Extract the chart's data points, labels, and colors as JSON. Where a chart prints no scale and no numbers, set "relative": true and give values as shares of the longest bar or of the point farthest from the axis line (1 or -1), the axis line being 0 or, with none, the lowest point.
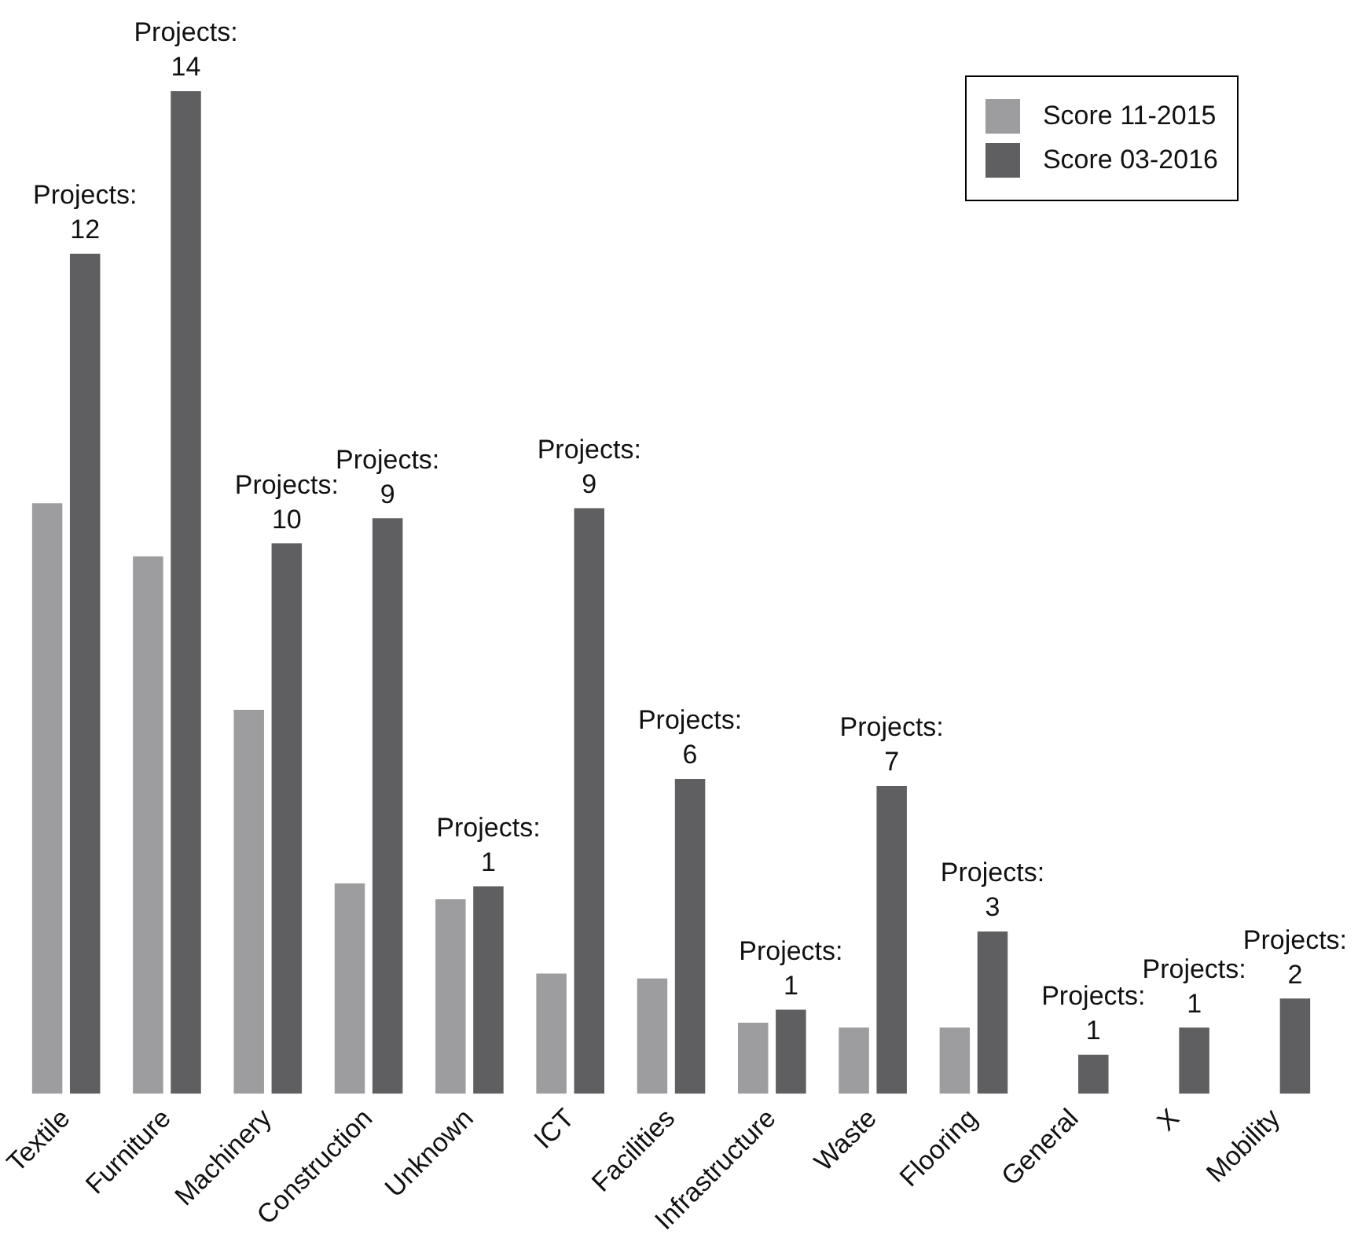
{
  "chart_data": {
    "type": "bar",
    "relative": true,
    "legend": "top right",
    "grid": false,
    "categories": [
      "Textile",
      "Furniture",
      "Machinery",
      "Construction",
      "Unknown",
      "ICT",
      "Facilities",
      "Infrastructure",
      "Waste",
      "Flooring",
      "General",
      "X",
      "Mobility"
    ],
    "series": [
      {
        "name": "Score 11-2015",
        "color": "#9d9d9f",
        "values": [
          0.589,
          0.536,
          0.383,
          0.21,
          0.194,
          0.12,
          0.115,
          0.071,
          0.066,
          0.066,
          null,
          null,
          null
        ]
      },
      {
        "name": "Score 03-2016",
        "color": "#5f5f61",
        "values": [
          0.838,
          1,
          0.549,
          0.574,
          0.207,
          0.584,
          0.314,
          0.084,
          0.307,
          0.162,
          0.039,
          0.066,
          0.095
        ]
      }
    ],
    "annotations": [
      {
        "text": "Projects:\n12",
        "x": "Textile",
        "y": 0.838
      },
      {
        "text": "Projects:\n14",
        "x": "Furniture",
        "y": 1
      },
      {
        "text": "Projects:\n10",
        "x": "Machinery",
        "y": 0.549
      },
      {
        "text": "Projects:\n9",
        "x": "Construction",
        "y": 0.574
      },
      {
        "text": "Projects:\n1",
        "x": "Unknown",
        "y": 0.207
      },
      {
        "text": "Projects:\n9",
        "x": "ICT",
        "y": 0.584
      },
      {
        "text": "Projects:\n6",
        "x": "Facilities",
        "y": 0.314
      },
      {
        "text": "Projects:\n1",
        "x": "Infrastructure",
        "y": 0.084
      },
      {
        "text": "Projects:\n7",
        "x": "Waste",
        "y": 0.307
      },
      {
        "text": "Projects:\n3",
        "x": "Flooring",
        "y": 0.162
      },
      {
        "text": "Projects:\n1",
        "x": "General",
        "y": 0.039
      },
      {
        "text": "Projects:\n1",
        "x": "X",
        "y": 0.066
      },
      {
        "text": "Projects:\n2",
        "x": "Mobility",
        "y": 0.095
      }
    ]
  }
}
